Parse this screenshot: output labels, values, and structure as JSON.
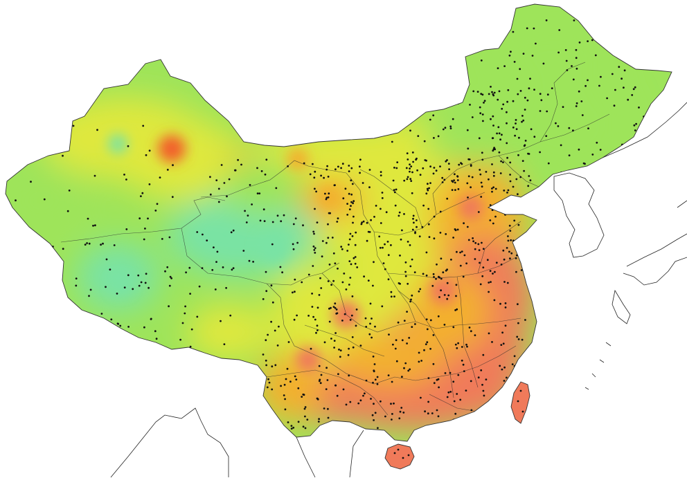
{
  "map": {
    "colors": {
      "low": "#79e3a4",
      "mid_low": "#9ee45a",
      "mid": "#dfe83e",
      "mid_high": "#f3b02d",
      "high": "#f07a5a",
      "peak": "#f2602c",
      "border": "#222222"
    },
    "regions": [
      {
        "name": "china-mainland"
      },
      {
        "name": "taiwan"
      },
      {
        "name": "hainan"
      },
      {
        "name": "korean-peninsula"
      },
      {
        "name": "japan"
      },
      {
        "name": "southeast-asia"
      }
    ]
  }
}
